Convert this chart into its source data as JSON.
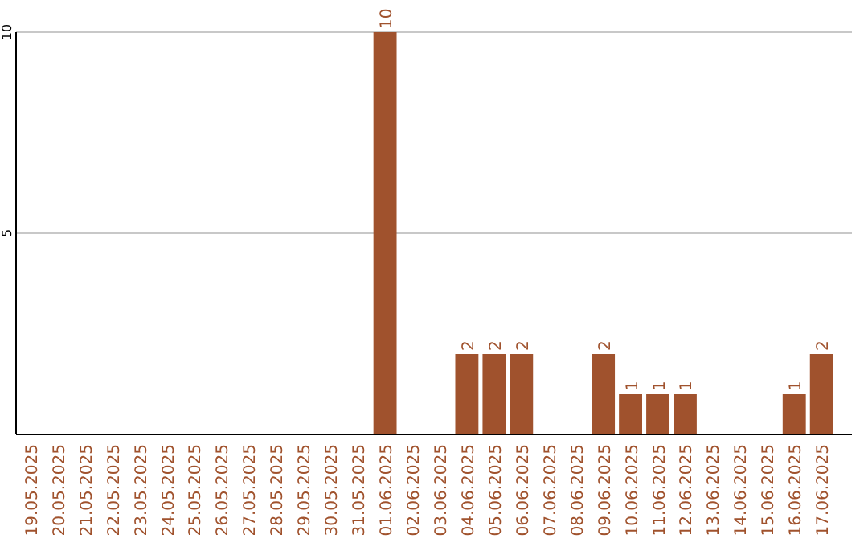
{
  "chart_data": {
    "type": "bar",
    "categories": [
      "19.05.2025",
      "20.05.2025",
      "21.05.2025",
      "22.05.2025",
      "23.05.2025",
      "24.05.2025",
      "25.05.2025",
      "26.05.2025",
      "27.05.2025",
      "28.05.2025",
      "29.05.2025",
      "30.05.2025",
      "31.05.2025",
      "01.06.2025",
      "02.06.2025",
      "03.06.2025",
      "04.06.2025",
      "05.06.2025",
      "06.06.2025",
      "07.06.2025",
      "08.06.2025",
      "09.06.2025",
      "10.06.2025",
      "11.06.2025",
      "12.06.2025",
      "13.06.2025",
      "14.06.2025",
      "15.06.2025",
      "16.06.2025",
      "17.06.2025"
    ],
    "values": [
      0,
      0,
      0,
      0,
      0,
      0,
      0,
      0,
      0,
      0,
      0,
      0,
      0,
      10,
      0,
      0,
      2,
      2,
      2,
      0,
      0,
      2,
      1,
      1,
      1,
      0,
      0,
      0,
      1,
      2
    ],
    "value_labels": [
      null,
      null,
      null,
      null,
      null,
      null,
      null,
      null,
      null,
      null,
      null,
      null,
      null,
      "10",
      null,
      null,
      "2",
      "2",
      "2",
      null,
      null,
      "2",
      "1",
      "1",
      "1",
      null,
      null,
      null,
      "1",
      "2"
    ],
    "color": "#a0522d",
    "ylim": [
      0,
      10
    ],
    "yticks": [
      5,
      10
    ],
    "grid": "y"
  }
}
